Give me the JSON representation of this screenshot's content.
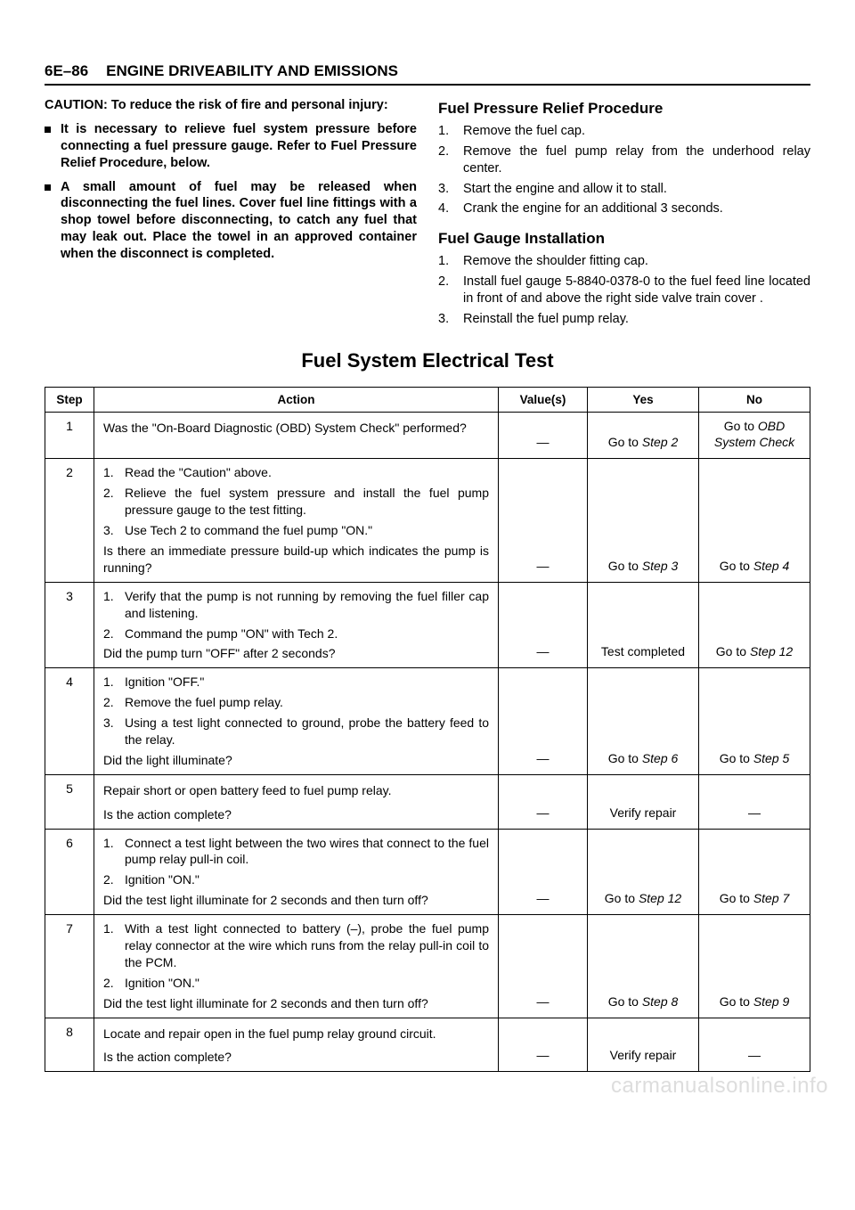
{
  "header": {
    "page_num": "6E–86",
    "title": "ENGINE DRIVEABILITY AND EMISSIONS"
  },
  "caution": {
    "intro": "CAUTION:  To reduce the risk of fire and personal injury:",
    "bullets": [
      "It is necessary to relieve fuel system pressure before connecting a fuel pressure gauge.  Refer to Fuel Pressure Relief Procedure, below.",
      "A small amount of fuel may be released when disconnecting the fuel lines.  Cover fuel line fittings with a shop towel before disconnecting, to catch any fuel that may leak out.  Place the towel in an approved container when the disconnect is completed."
    ]
  },
  "relief": {
    "heading": "Fuel Pressure Relief Procedure",
    "items": [
      "Remove the fuel cap.",
      "Remove the fuel pump relay from the underhood relay center.",
      "Start the engine and allow it to stall.",
      "Crank the engine for an additional 3 seconds."
    ]
  },
  "gauge": {
    "heading": "Fuel Gauge Installation",
    "items": [
      "Remove the shoulder fitting cap.",
      "Install fuel gauge 5-8840-0378-0 to the fuel feed line located in front of and above the right side valve train cover .",
      "Reinstall the fuel pump relay."
    ]
  },
  "test_heading": "Fuel System Electrical Test",
  "table": {
    "headers": {
      "step": "Step",
      "action": "Action",
      "values": "Value(s)",
      "yes": "Yes",
      "no": "No"
    },
    "rows": [
      {
        "step": "1",
        "question": "Was the \"On-Board Diagnostic (OBD) System Check\" performed?",
        "values": "—",
        "yes_pre": "Go to ",
        "yes_italic": "Step 2",
        "no_pre": "Go to ",
        "no_italic": "OBD System Check"
      },
      {
        "step": "2",
        "list": [
          "Read the \"Caution\" above.",
          "Relieve the fuel system pressure and install the fuel pump pressure gauge to the test fitting.",
          "Use Tech 2 to command the fuel pump \"ON.\""
        ],
        "question": "Is there an immediate pressure build-up which indicates the pump is running?",
        "values": "—",
        "yes_pre": "Go to ",
        "yes_italic": "Step 3",
        "no_pre": "Go to ",
        "no_italic": "Step 4"
      },
      {
        "step": "3",
        "list": [
          "Verify that the pump is not running by removing the fuel filler cap and listening.",
          "Command the pump \"ON\" with Tech 2."
        ],
        "question": "Did the pump turn \"OFF\" after 2 seconds?",
        "values": "—",
        "yes_plain": "Test completed",
        "no_pre": "Go to ",
        "no_italic": "Step 12"
      },
      {
        "step": "4",
        "list": [
          "Ignition \"OFF.\"",
          "Remove the fuel pump relay.",
          "Using a test light connected to ground, probe the battery feed to the relay."
        ],
        "question": "Did the light illuminate?",
        "values": "—",
        "yes_pre": "Go to ",
        "yes_italic": "Step 6",
        "no_pre": "Go to ",
        "no_italic": "Step 5"
      },
      {
        "step": "5",
        "plain": "Repair short or open battery feed to fuel pump relay.",
        "question": "Is the action complete?",
        "values": "—",
        "yes_plain": "Verify repair",
        "no_plain": "—"
      },
      {
        "step": "6",
        "list": [
          "Connect a test light between the two wires that connect to the fuel pump relay pull-in coil.",
          "Ignition \"ON.\""
        ],
        "question": "Did the test light illuminate for 2 seconds and then turn off?",
        "values": "—",
        "yes_pre": "Go to ",
        "yes_italic": "Step 12",
        "no_pre": "Go to ",
        "no_italic": "Step 7"
      },
      {
        "step": "7",
        "list": [
          "With a test light connected to battery (–), probe the fuel pump relay connector at the wire which runs from the relay pull-in coil to the PCM.",
          "Ignition \"ON.\""
        ],
        "question": "Did the test light illuminate for 2 seconds and then turn off?",
        "values": "—",
        "yes_pre": "Go to ",
        "yes_italic": "Step 8",
        "no_pre": "Go to ",
        "no_italic": "Step 9"
      },
      {
        "step": "8",
        "plain": "Locate and repair open in the fuel pump relay ground circuit.",
        "question": "Is the action complete?",
        "values": "—",
        "yes_plain": "Verify repair",
        "no_plain": "—"
      }
    ]
  },
  "watermark": "carmanualsonline.info"
}
